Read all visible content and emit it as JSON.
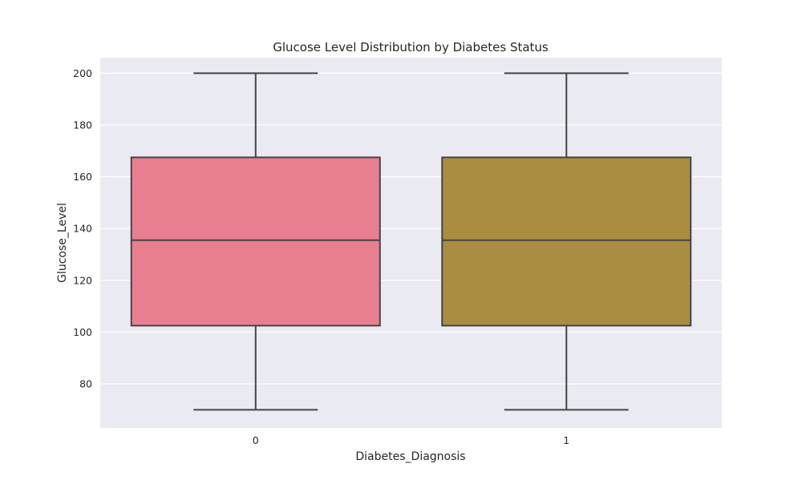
{
  "chart_data": {
    "type": "box",
    "title": "Glucose Level Distribution by Diabetes Status",
    "xlabel": "Diabetes_Diagnosis",
    "ylabel": "Glucose_Level",
    "categories": [
      "0",
      "1"
    ],
    "ylim": [
      63,
      206
    ],
    "yticks": [
      80,
      100,
      120,
      140,
      160,
      180,
      200
    ],
    "grid": true,
    "boxes": [
      {
        "category": "0",
        "min": 70,
        "q1": 102.5,
        "median": 135.5,
        "q3": 167.5,
        "max": 200,
        "color": "#e77f91"
      },
      {
        "category": "1",
        "min": 70,
        "q1": 102.5,
        "median": 135.5,
        "q3": 167.5,
        "max": 200,
        "color": "#a88d42"
      }
    ],
    "colors": {
      "background": "#eaeaf2",
      "grid": "#ffffff",
      "line": "#444444"
    }
  }
}
